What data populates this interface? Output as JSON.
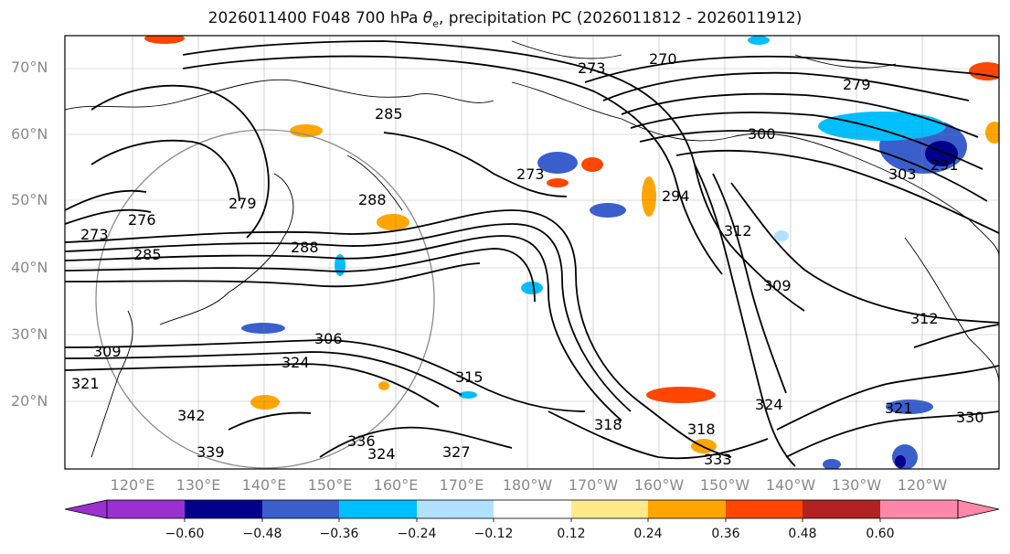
{
  "title_main": "2026011400 F048 700 hPa ",
  "title_symbol": "θ",
  "title_sub": "e",
  "title_rest": ", precipitation PC (2026011812 - 2026011912)",
  "lat_labels": [
    "70°N",
    "60°N",
    "50°N",
    "40°N",
    "30°N",
    "20°N"
  ],
  "lon_labels": [
    "120°E",
    "130°E",
    "140°E",
    "150°E",
    "160°E",
    "170°E",
    "180°W",
    "170°W",
    "160°W",
    "150°W",
    "140°W",
    "130°W",
    "120°W"
  ],
  "colorbar": {
    "ticks": [
      "−0.60",
      "−0.48",
      "−0.36",
      "−0.24",
      "−0.12",
      "0.12",
      "0.24",
      "0.36",
      "0.48",
      "0.60"
    ],
    "colors": [
      "#9b30d0",
      "#00008b",
      "#3a5fcd",
      "#00bfff",
      "#b0e2ff",
      "#ffffff",
      "#ffe98a",
      "#ffa500",
      "#ff4500",
      "#b22222",
      "#ff88aa",
      "#ff88aa"
    ]
  },
  "contour_labels": [
    "270",
    "273",
    "276",
    "279",
    "285",
    "288",
    "291",
    "294",
    "300",
    "303",
    "306",
    "309",
    "312",
    "315",
    "318",
    "321",
    "324",
    "327",
    "330",
    "333",
    "336",
    "339",
    "342"
  ],
  "colors": {
    "contour": "#000000",
    "coast": "#000000",
    "grid": "#808080",
    "circle": "#8a8a8a"
  }
}
